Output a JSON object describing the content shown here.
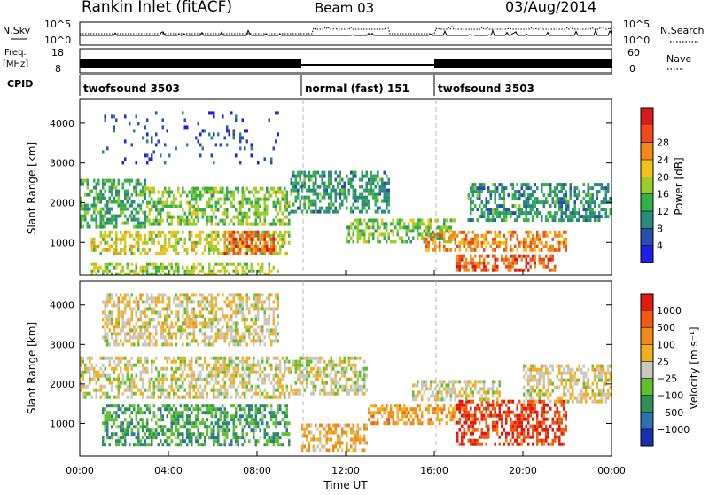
{
  "header": {
    "title": "Rankin Inlet (fitACF)",
    "beam": "Beam 03",
    "date": "03/Aug/2014"
  },
  "strips": {
    "nsky_label": "N.Sky",
    "nsky_ticks": [
      "10^5",
      "10^0"
    ],
    "nsearch_label": "N.Search",
    "nsearch_ticks": [
      "10^5",
      "10^0"
    ],
    "freq_label_1": "Freq.",
    "freq_label_2": "[MHz]",
    "freq_ticks": [
      "18",
      "8"
    ],
    "nave_label": "Nave",
    "nave_ticks": [
      "60",
      "0"
    ],
    "cpid_label": "CPID",
    "cpid_segments": [
      {
        "label": "twofsound 3503",
        "start_hour": 0,
        "end_hour": 10
      },
      {
        "label": "normal (fast) 151",
        "start_hour": 10,
        "end_hour": 16
      },
      {
        "label": "twofsound 3503",
        "start_hour": 16,
        "end_hour": 24
      }
    ]
  },
  "chart_data": [
    {
      "type": "heatmap",
      "name": "power_panel",
      "ylabel": "Slant Range [km]",
      "ylim": [
        180,
        4600
      ],
      "yticks": [
        "1000",
        "2000",
        "3000",
        "4000"
      ],
      "yticks_values": [
        1000,
        2000,
        3000,
        4000
      ],
      "xlim": [
        0,
        24
      ],
      "colorbar": {
        "label": "Power [dB]",
        "ticks": [
          "4",
          "8",
          "12",
          "16",
          "20",
          "24",
          "28"
        ],
        "colors": [
          "#1e1ee6",
          "#2a4db0",
          "#2c8a7c",
          "#34b04a",
          "#9ccc2a",
          "#f2c21a",
          "#f28a1a",
          "#ee4a1a",
          "#d81a1a"
        ]
      },
      "bands": [
        {
          "x": [
            0.0,
            3.0
          ],
          "y": [
            1400,
            2600
          ],
          "level": 0.35
        },
        {
          "x": [
            3.0,
            9.5
          ],
          "y": [
            1500,
            2400
          ],
          "level": 0.45
        },
        {
          "x": [
            0.5,
            9.5
          ],
          "y": [
            700,
            1300
          ],
          "level": 0.55
        },
        {
          "x": [
            6.5,
            8.8
          ],
          "y": [
            700,
            1300
          ],
          "level": 0.85
        },
        {
          "x": [
            9.5,
            14.0
          ],
          "y": [
            1800,
            2800
          ],
          "level": 0.3
        },
        {
          "x": [
            12.0,
            17.0
          ],
          "y": [
            1000,
            1600
          ],
          "level": 0.45
        },
        {
          "x": [
            15.5,
            22.0
          ],
          "y": [
            800,
            1300
          ],
          "level": 0.75
        },
        {
          "x": [
            17.0,
            21.5
          ],
          "y": [
            300,
            700
          ],
          "level": 0.85
        },
        {
          "x": [
            17.5,
            24.0
          ],
          "y": [
            1600,
            2500
          ],
          "level": 0.3
        },
        {
          "x": [
            0.5,
            9.0
          ],
          "y": [
            200,
            500
          ],
          "level": 0.5
        },
        {
          "x": [
            1.0,
            9.0
          ],
          "y": [
            3000,
            4300
          ],
          "level": 0.1
        }
      ]
    },
    {
      "type": "heatmap",
      "name": "velocity_panel",
      "ylabel": "Slant Range [km]",
      "xlabel": "Time UT",
      "ylim": [
        180,
        4600
      ],
      "yticks": [
        "1000",
        "2000",
        "3000",
        "4000"
      ],
      "yticks_values": [
        1000,
        2000,
        3000,
        4000
      ],
      "xlim": [
        0,
        24
      ],
      "xticks": [
        "00:00",
        "04:00",
        "08:00",
        "12:00",
        "16:00",
        "20:00",
        "00:00"
      ],
      "xticks_values": [
        0,
        4,
        8,
        12,
        16,
        20,
        24
      ],
      "colorbar": {
        "label": "Velocity [m s⁻¹]",
        "ticks": [
          "1000",
          "500",
          "100",
          "25",
          "−25",
          "−100",
          "−500",
          "−1000"
        ],
        "colors": [
          "#1a2fb0",
          "#2f6fb0",
          "#2e8f5a",
          "#5fc02e",
          "#c8c8c0",
          "#f0b020",
          "#f08a1a",
          "#f05a10",
          "#e01a10"
        ]
      },
      "bands": [
        {
          "x": [
            0.0,
            9.5
          ],
          "y": [
            1700,
            2700
          ],
          "level": 0.52
        },
        {
          "x": [
            9.5,
            13.0
          ],
          "y": [
            1800,
            2700
          ],
          "level": 0.5
        },
        {
          "x": [
            1.0,
            9.5
          ],
          "y": [
            500,
            1500
          ],
          "level": 0.3
        },
        {
          "x": [
            10.0,
            13.0
          ],
          "y": [
            300,
            1000
          ],
          "level": 0.65
        },
        {
          "x": [
            13.0,
            17.5
          ],
          "y": [
            1000,
            1500
          ],
          "level": 0.7
        },
        {
          "x": [
            17.0,
            22.0
          ],
          "y": [
            500,
            1600
          ],
          "level": 0.95
        },
        {
          "x": [
            20.0,
            24.0
          ],
          "y": [
            1600,
            2500
          ],
          "level": 0.55
        },
        {
          "x": [
            15.0,
            19.0
          ],
          "y": [
            1600,
            2100
          ],
          "level": 0.52
        },
        {
          "x": [
            1.0,
            9.0
          ],
          "y": [
            3000,
            4300
          ],
          "level": 0.55
        }
      ]
    }
  ]
}
